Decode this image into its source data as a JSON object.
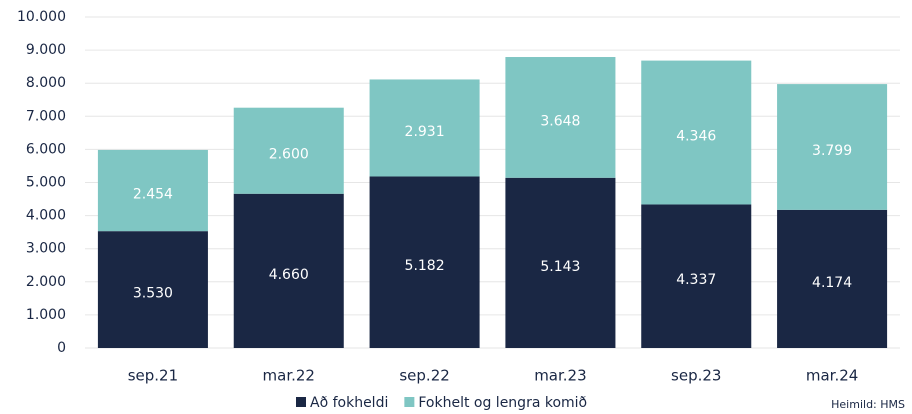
{
  "chart_data": {
    "type": "stacked_bar",
    "categories": [
      "sep.21",
      "mar.22",
      "sep.22",
      "mar.23",
      "sep.23",
      "mar.24"
    ],
    "series": [
      {
        "name": "Að fokheldi",
        "color": "#1a2744",
        "values": [
          3530,
          4660,
          5182,
          5143,
          4337,
          4174
        ],
        "value_labels": [
          "3.530",
          "4.660",
          "5.182",
          "5.143",
          "4.337",
          "4.174"
        ]
      },
      {
        "name": "Fokhelt og lengra komið",
        "color": "#7fc6c3",
        "values": [
          2454,
          2600,
          2931,
          3648,
          4346,
          3799
        ],
        "value_labels": [
          "2.454",
          "2.600",
          "2.931",
          "3.648",
          "4.346",
          "3.799"
        ]
      }
    ],
    "ylim": [
      0,
      10000
    ],
    "yticks": [
      0,
      {
        "value": 1000,
        "label": "1.000"
      },
      {
        "value": 2000,
        "label": "2.000"
      },
      {
        "value": 3000,
        "label": "3.000"
      },
      {
        "value": 4000,
        "label": "4.000"
      },
      {
        "value": 5000,
        "label": "5.000"
      },
      {
        "value": 6000,
        "label": "6.000"
      },
      {
        "value": 7000,
        "label": "7.000"
      },
      {
        "value": 8000,
        "label": "8.000"
      },
      {
        "value": 9000,
        "label": "9.000"
      },
      {
        "value": 10000,
        "label": "10.000"
      }
    ],
    "grid": true,
    "legend": "bottom",
    "source": "Heimild: HMS"
  }
}
